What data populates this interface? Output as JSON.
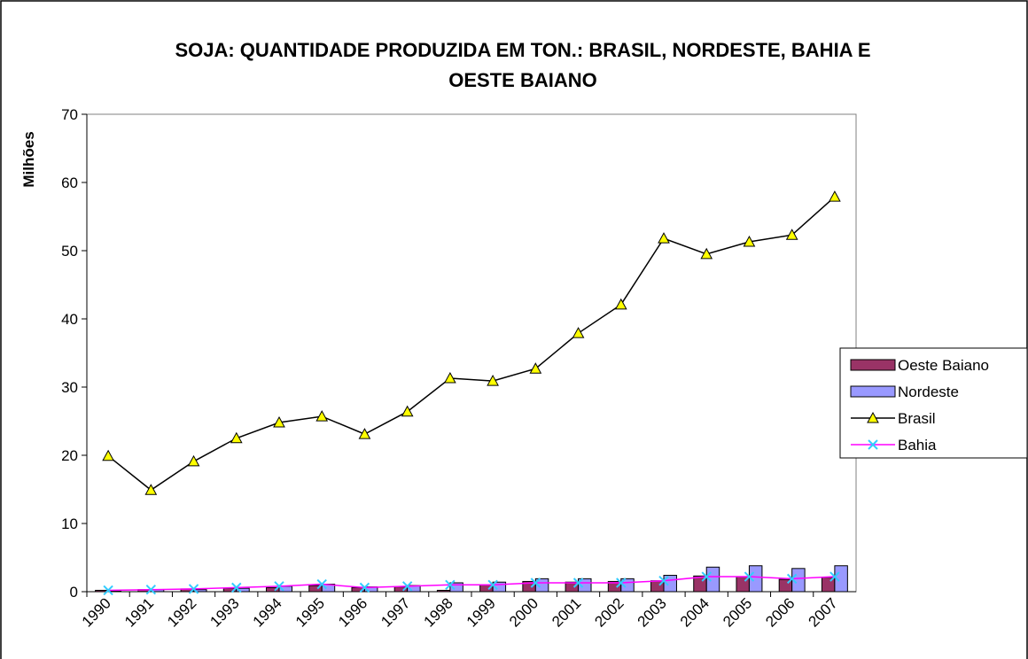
{
  "chart_data": {
    "type": "bar_line",
    "title": "SOJA: QUANTIDADE PRODUZIDA EM TON.: BRASIL, NORDESTE, BAHIA E OESTE BAIANO",
    "y_label": "Milhões",
    "categories": [
      "1990",
      "1991",
      "1992",
      "1993",
      "1994",
      "1995",
      "1996",
      "1997",
      "1998",
      "1999",
      "2000",
      "2001",
      "2002",
      "2003",
      "2004",
      "2005",
      "2006",
      "2007"
    ],
    "series": [
      {
        "name": "Oeste Baiano",
        "kind": "bar",
        "color": "#993366",
        "values": [
          0.2,
          0.3,
          0.4,
          0.5,
          0.6,
          0.9,
          0.6,
          0.7,
          0.2,
          1.0,
          1.5,
          1.4,
          1.5,
          1.6,
          2.3,
          2.2,
          1.8,
          2.1
        ]
      },
      {
        "name": "Nordeste",
        "kind": "bar",
        "color": "#9999ff",
        "values": [
          0.1,
          0.3,
          0.3,
          0.5,
          0.8,
          1.1,
          0.7,
          0.9,
          1.3,
          1.4,
          1.9,
          1.9,
          1.9,
          2.4,
          3.6,
          3.8,
          3.4,
          3.8
        ]
      },
      {
        "name": "Brasil",
        "kind": "line",
        "color": "#000000",
        "marker": "triangle",
        "marker_color": "#ffff00",
        "values": [
          19.9,
          14.9,
          19.1,
          22.5,
          24.8,
          25.7,
          23.1,
          26.4,
          31.3,
          30.9,
          32.7,
          37.9,
          42.1,
          51.8,
          49.5,
          51.3,
          52.3,
          57.9
        ]
      },
      {
        "name": "Bahia",
        "kind": "line",
        "color": "#ff00ff",
        "marker": "x",
        "marker_color": "#33ccff",
        "values": [
          0.2,
          0.3,
          0.4,
          0.6,
          0.8,
          1.1,
          0.6,
          0.8,
          1.0,
          1.0,
          1.3,
          1.3,
          1.3,
          1.6,
          2.2,
          2.2,
          1.9,
          2.2
        ]
      }
    ],
    "ylim": [
      0,
      70
    ],
    "yticks": [
      0,
      10,
      20,
      30,
      40,
      50,
      60,
      70
    ],
    "grid": false,
    "legend": "right"
  }
}
